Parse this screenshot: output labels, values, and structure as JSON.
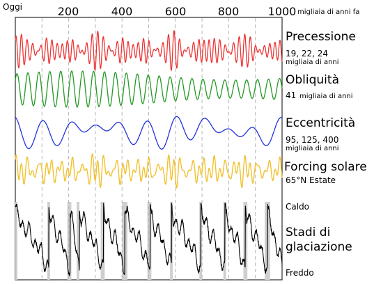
{
  "chart_data": {
    "type": "line",
    "x_axis": {
      "start_label": "Oggi",
      "unit_label": "migliaia di anni fa",
      "ticks": [
        200,
        400,
        600,
        800,
        1000
      ],
      "xlim": [
        0,
        1000
      ],
      "grid": "dashed vertical every 100"
    },
    "series": [
      {
        "name": "Precessione",
        "periods_text": "19, 22, 24",
        "periods_unit": "migliaia di anni",
        "periods": [
          19,
          22,
          24
        ],
        "color": "#ee3333"
      },
      {
        "name": "Obliquità",
        "periods_text": "41",
        "periods_unit": "migliaia di anni",
        "periods": [
          41
        ],
        "color": "#229922"
      },
      {
        "name": "Eccentricità",
        "periods_text": "95, 125, 400",
        "periods_unit": "migliaia di anni",
        "periods": [
          95,
          125,
          400
        ],
        "color": "#2233dd"
      },
      {
        "name": "Forcing solare",
        "subtitle": "65°N Estate",
        "color": "#f2c12e"
      },
      {
        "name": "Stadi di glaciazione",
        "top_label": "Caldo",
        "bottom_label": "Freddo",
        "color": "#000000"
      }
    ],
    "interglacial_bands_kyr": [
      [
        0,
        6
      ],
      [
        120,
        130
      ],
      [
        195,
        210
      ],
      [
        230,
        240
      ],
      [
        320,
        335
      ],
      [
        400,
        420
      ],
      [
        495,
        510
      ],
      [
        580,
        590
      ],
      [
        690,
        700
      ],
      [
        780,
        790
      ],
      [
        855,
        870
      ],
      [
        935,
        955
      ]
    ]
  }
}
